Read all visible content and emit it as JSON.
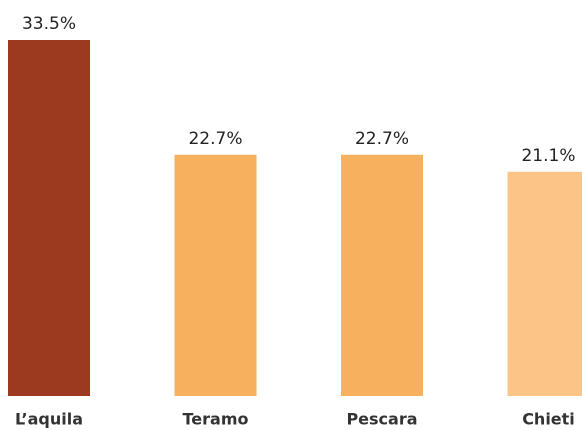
{
  "chart_data": {
    "type": "bar",
    "categories": [
      "L’aquila",
      "Teramo",
      "Pescara",
      "Chieti"
    ],
    "values": [
      33.5,
      22.7,
      22.7,
      21.1
    ],
    "value_labels": [
      "33.5%",
      "22.7%",
      "22.7%",
      "21.1%"
    ],
    "colors": [
      "#9c3a20",
      "#f6b05e",
      "#f6b05e",
      "#fcc486"
    ]
  }
}
